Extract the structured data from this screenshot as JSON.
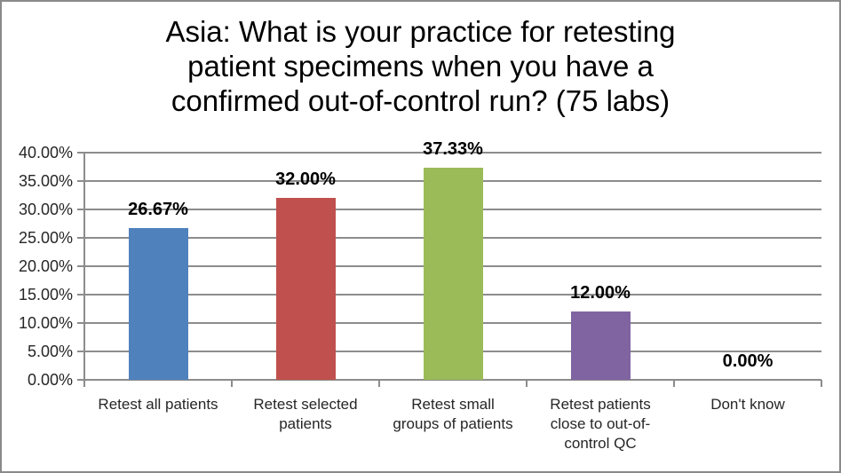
{
  "chart_data": {
    "type": "bar",
    "title": "Asia: What is your practice for retesting\npatient specimens when you have a\nconfirmed out-of-control run? (75 labs)",
    "categories": [
      "Retest all patients",
      "Retest selected patients",
      "Retest small groups of patients",
      "Retest patients close to out-of-control QC",
      "Don't know"
    ],
    "category_display_labels": [
      "Retest all patients",
      "Retest selected\npatients",
      "Retest small\ngroups of patients",
      "Retest patients\nclose to out-of-\ncontrol QC",
      "Don't know"
    ],
    "values": [
      26.67,
      32.0,
      37.33,
      12.0,
      0.0
    ],
    "data_labels": [
      "26.67%",
      "32.00%",
      "37.33%",
      "12.00%",
      "0.00%"
    ],
    "bar_colors": [
      "#4F81BD",
      "#C0504D",
      "#9BBB59",
      "#8064A2",
      "#4F81BD"
    ],
    "y_ticks": [
      "40.00%",
      "35.00%",
      "30.00%",
      "25.00%",
      "20.00%",
      "15.00%",
      "10.00%",
      "5.00%",
      "0.00%"
    ],
    "ylim": [
      0,
      40
    ],
    "xlabel": "",
    "ylabel": "",
    "grid": true,
    "legend": "none",
    "colors": {
      "gridline": "#8c8c8c",
      "axis_text": "#262626",
      "title_text": "#000000",
      "data_label_text": "#000000",
      "frame_border": "#8a8a8a",
      "background": "#ffffff"
    }
  }
}
